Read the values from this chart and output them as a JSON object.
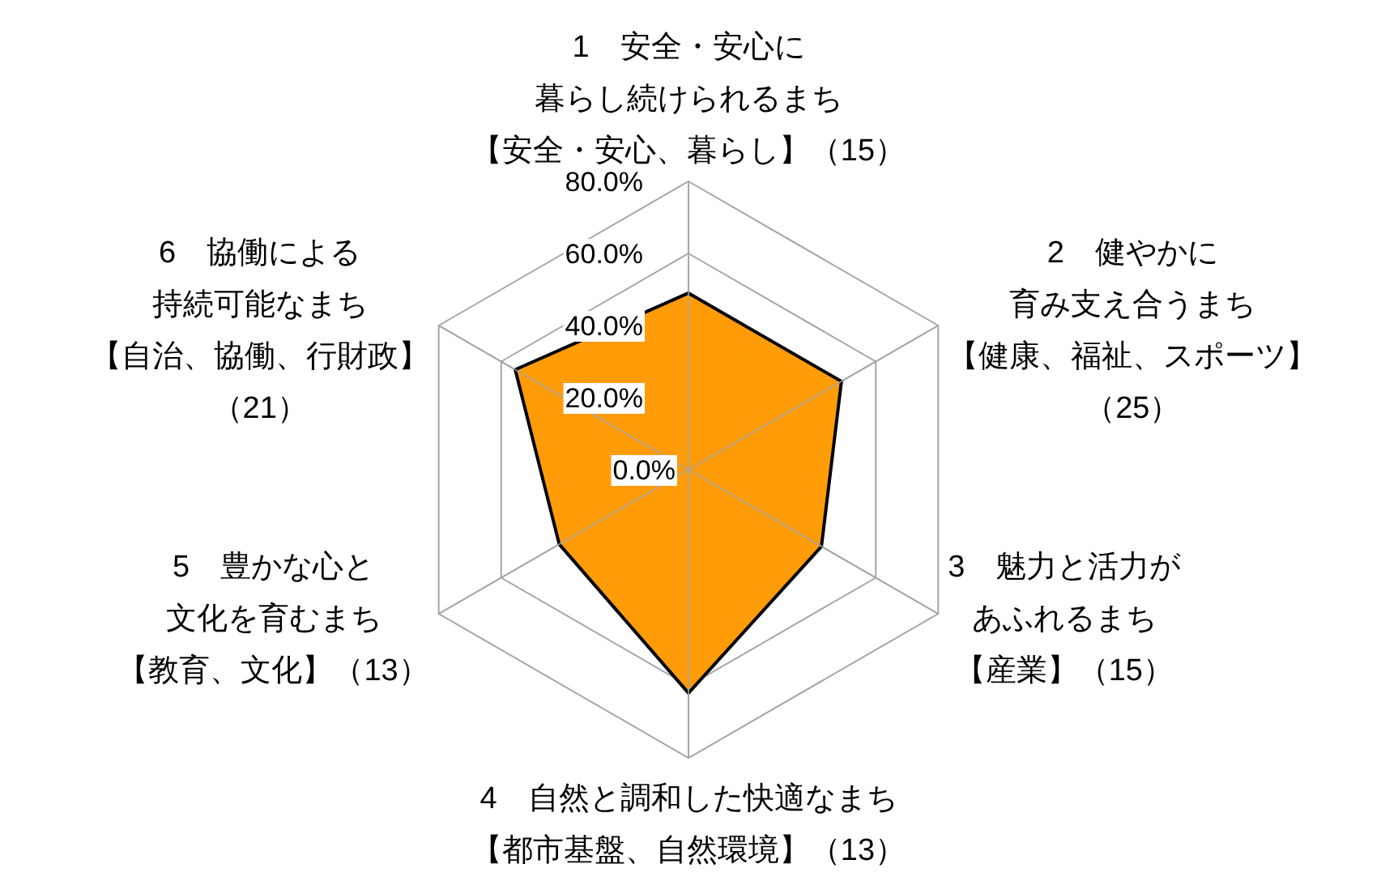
{
  "chart_data": {
    "type": "radar",
    "categories": [
      "1　安全・安心に暮らし続けられるまち【安全・安心、暮らし】（15）",
      "2　健やかに育み支え合うまち【健康、福祉、スポーツ】（25）",
      "3　魅力と活力があふれるまち【産業】（15）",
      "4　自然と調和した快適なまち【都市基盤、自然環境】（13）",
      "5　豊かな心と文化を育むまち【教育、文化】（13）",
      "6　協働による持続可能なまち【自治、協働、行財政】（21）"
    ],
    "series": [
      {
        "color": "#ff9900",
        "values": [
          49,
          49,
          42.6,
          62,
          41.4,
          55.5
        ]
      }
    ],
    "ylim": [
      0,
      80
    ],
    "yticks": [
      {
        "value": 0,
        "label": "0.0%"
      },
      {
        "value": 20,
        "label": "20.0%"
      },
      {
        "value": 40,
        "label": "40.0%"
      },
      {
        "value": 60,
        "label": "60.0%"
      },
      {
        "value": 80,
        "label": "80.0%"
      }
    ],
    "grid": true
  }
}
